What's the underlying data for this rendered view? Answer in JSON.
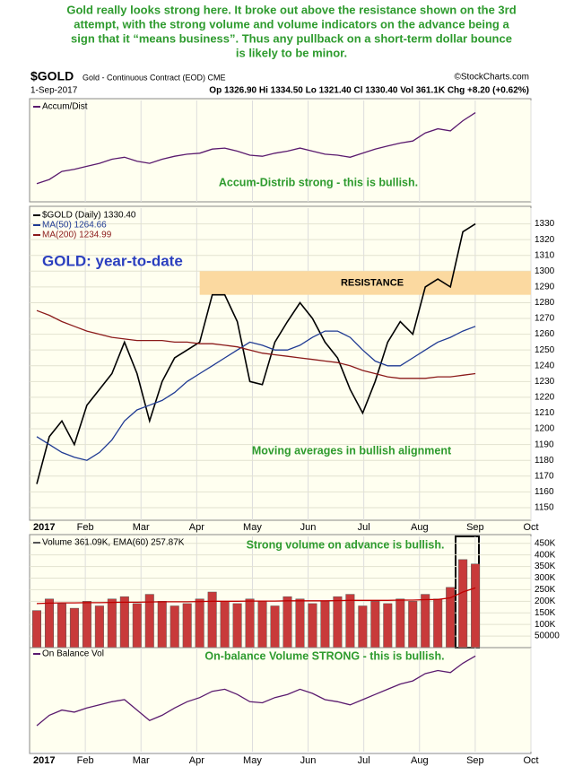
{
  "annotation": [
    "Gold really looks strong here. It broke out above the resistance shown on the 3rd",
    "attempt, with the strong volume and volume indicators on the advance being a",
    "sign that it “means business”. Thus any pullback on a short-term dollar bounce",
    "is likely to be minor."
  ],
  "header": {
    "symbol": "$GOLD",
    "name": "Gold - Continuous Contract (EOD) CME",
    "source": "©StockCharts.com",
    "date": "1-Sep-2017",
    "quote": "Op 1326.90 Hi 1334.50 Lo 1321.40 Cl 1330.40 Vol 361.1K Chg +8.20 (+0.62%)"
  },
  "months": [
    "2017",
    "Feb",
    "Mar",
    "Apr",
    "May",
    "Jun",
    "Jul",
    "Aug",
    "Sep",
    "Oct"
  ],
  "chart_data": [
    {
      "type": "line",
      "title": "Accum/Dist",
      "annotation": "Accum-Distrib strong - this is bullish.",
      "ylim": [
        0,
        100
      ],
      "series": [
        {
          "name": "Accum/Dist",
          "color": "#5a1a6e",
          "values": [
            18,
            22,
            30,
            32,
            35,
            38,
            42,
            44,
            40,
            38,
            42,
            45,
            47,
            48,
            52,
            53,
            50,
            46,
            45,
            48,
            50,
            53,
            50,
            47,
            46,
            44,
            48,
            52,
            55,
            58,
            60,
            68,
            72,
            70,
            80,
            88
          ]
        }
      ]
    },
    {
      "type": "line",
      "title": "GOLD: year-to-date",
      "annotation": "Moving averages in bullish alignment",
      "band": {
        "label": "RESISTANCE",
        "range": [
          1285,
          1300
        ],
        "color": "#fbd9a0"
      },
      "ylim": [
        1142,
        1340
      ],
      "yticks": [
        1150,
        1160,
        1170,
        1180,
        1190,
        1200,
        1210,
        1220,
        1230,
        1240,
        1250,
        1260,
        1270,
        1280,
        1290,
        1300,
        1310,
        1320,
        1330
      ],
      "series": [
        {
          "name": "$GOLD (Daily) 1330.40",
          "color": "#000000",
          "values": [
            1165,
            1195,
            1205,
            1190,
            1215,
            1225,
            1235,
            1255,
            1235,
            1205,
            1230,
            1245,
            1250,
            1255,
            1285,
            1285,
            1268,
            1230,
            1228,
            1255,
            1268,
            1280,
            1270,
            1255,
            1245,
            1225,
            1210,
            1230,
            1255,
            1268,
            1260,
            1290,
            1295,
            1290,
            1325,
            1330
          ]
        },
        {
          "name": "MA(50) 1264.66",
          "color": "#1f3a93",
          "values": [
            1195,
            1190,
            1185,
            1182,
            1180,
            1185,
            1193,
            1205,
            1212,
            1215,
            1218,
            1223,
            1230,
            1235,
            1240,
            1245,
            1250,
            1255,
            1253,
            1250,
            1250,
            1253,
            1258,
            1262,
            1262,
            1258,
            1250,
            1243,
            1240,
            1240,
            1245,
            1250,
            1255,
            1258,
            1262,
            1265
          ]
        },
        {
          "name": "MA(200) 1234.99",
          "color": "#8b1a1a",
          "values": [
            1275,
            1272,
            1268,
            1265,
            1262,
            1260,
            1258,
            1257,
            1256,
            1256,
            1256,
            1255,
            1255,
            1254,
            1254,
            1253,
            1252,
            1250,
            1248,
            1247,
            1246,
            1245,
            1244,
            1243,
            1242,
            1240,
            1237,
            1235,
            1233,
            1232,
            1232,
            1232,
            1233,
            1233,
            1234,
            1235
          ]
        }
      ]
    },
    {
      "type": "bar",
      "title": "Volume 361.09K, EMA(60) 257.87K",
      "annotation": "Strong volume on advance is bullish.",
      "ylim": [
        0,
        480000
      ],
      "yticks": [
        50000,
        {
          "value": 100000,
          "label": "100K"
        },
        {
          "value": 150000,
          "label": "150K"
        },
        {
          "value": 200000,
          "label": "200K"
        },
        {
          "value": 250000,
          "label": "250K"
        },
        {
          "value": 300000,
          "label": "300K"
        },
        {
          "value": 350000,
          "label": "350K"
        },
        {
          "value": 400000,
          "label": "400K"
        },
        {
          "value": 450000,
          "label": "450K"
        }
      ],
      "color": "#c83a3a",
      "values": [
        160000,
        210000,
        190000,
        170000,
        200000,
        180000,
        210000,
        220000,
        190000,
        230000,
        200000,
        180000,
        190000,
        210000,
        240000,
        200000,
        190000,
        210000,
        200000,
        180000,
        220000,
        210000,
        190000,
        200000,
        220000,
        230000,
        180000,
        200000,
        190000,
        210000,
        200000,
        230000,
        210000,
        260000,
        380000,
        361090
      ],
      "series": [
        {
          "name": "EMA(60)",
          "color": "#c00000",
          "values": [
            190000,
            192000,
            193000,
            193000,
            194000,
            194000,
            195000,
            196000,
            196000,
            197000,
            198000,
            198000,
            198000,
            199000,
            200000,
            200000,
            200000,
            201000,
            201000,
            201000,
            202000,
            202000,
            202000,
            202000,
            203000,
            204000,
            204000,
            204000,
            204000,
            205000,
            205000,
            207000,
            208000,
            215000,
            240000,
            257870
          ]
        }
      ]
    },
    {
      "type": "line",
      "title": "On Balance Vol",
      "annotation": "On-balance Volume STRONG - this is bullish.",
      "ylim": [
        0,
        100
      ],
      "series": [
        {
          "name": "On Balance Vol",
          "color": "#5a1a6e",
          "values": [
            25,
            35,
            40,
            38,
            42,
            45,
            48,
            50,
            40,
            30,
            35,
            42,
            48,
            52,
            58,
            60,
            55,
            48,
            47,
            52,
            55,
            60,
            56,
            50,
            48,
            45,
            50,
            55,
            60,
            65,
            68,
            75,
            78,
            76,
            85,
            92
          ]
        }
      ]
    }
  ]
}
